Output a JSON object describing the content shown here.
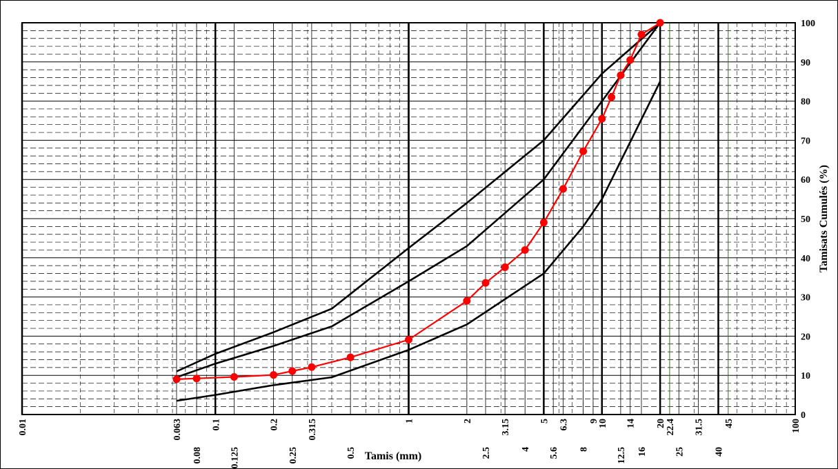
{
  "chart_data": {
    "type": "line",
    "title": "",
    "xlabel": "Tamis (mm)",
    "ylabel": "Tamisats Cumulés (%)",
    "x_scale": "log",
    "xlim": [
      0.01,
      100
    ],
    "ylim": [
      0,
      100
    ],
    "grid": true,
    "x_tick_labels": [
      {
        "value": 0.01,
        "label": "0.01"
      },
      {
        "value": 0.063,
        "label": "0.063"
      },
      {
        "value": 0.08,
        "label": "0.08"
      },
      {
        "value": 0.1,
        "label": "0.1"
      },
      {
        "value": 0.125,
        "label": "0.125"
      },
      {
        "value": 0.2,
        "label": "0.2"
      },
      {
        "value": 0.25,
        "label": "0.25"
      },
      {
        "value": 0.315,
        "label": "0.315"
      },
      {
        "value": 0.5,
        "label": "0.5"
      },
      {
        "value": 1,
        "label": "1"
      },
      {
        "value": 2,
        "label": "2"
      },
      {
        "value": 2.5,
        "label": "2.5"
      },
      {
        "value": 3.15,
        "label": "3.15"
      },
      {
        "value": 4,
        "label": "4"
      },
      {
        "value": 5,
        "label": "5"
      },
      {
        "value": 5.6,
        "label": "5.6"
      },
      {
        "value": 6.3,
        "label": "6.3"
      },
      {
        "value": 8,
        "label": "8"
      },
      {
        "value": 9,
        "label": "9"
      },
      {
        "value": 10,
        "label": "10"
      },
      {
        "value": 12.5,
        "label": "12.5"
      },
      {
        "value": 14,
        "label": "14"
      },
      {
        "value": 16,
        "label": "16"
      },
      {
        "value": 20,
        "label": "20"
      },
      {
        "value": 22.4,
        "label": "22.4"
      },
      {
        "value": 25,
        "label": "25"
      },
      {
        "value": 31.5,
        "label": "31.5"
      },
      {
        "value": 40,
        "label": "40"
      },
      {
        "value": 45,
        "label": "45"
      },
      {
        "value": 100,
        "label": "100"
      }
    ],
    "y_ticks": [
      0,
      10,
      20,
      30,
      40,
      50,
      60,
      70,
      80,
      90,
      100
    ],
    "series": [
      {
        "color": "#000000",
        "markers": false,
        "x": [
          0.063,
          0.1,
          0.2,
          0.4,
          1,
          2,
          5,
          10,
          20
        ],
        "y": [
          11,
          15.5,
          21,
          27,
          42.5,
          54,
          70,
          87,
          100
        ]
      },
      {
        "color": "#000000",
        "markers": false,
        "x": [
          0.063,
          0.1,
          0.2,
          0.4,
          1,
          2,
          5,
          10,
          20
        ],
        "y": [
          9.5,
          13,
          17.5,
          22.5,
          34,
          43,
          60,
          80,
          100
        ]
      },
      {
        "color": "#000000",
        "markers": false,
        "x": [
          0.063,
          0.1,
          0.2,
          0.4,
          1,
          2,
          5,
          8,
          10,
          20
        ],
        "y": [
          3.5,
          5,
          7.5,
          9.5,
          16.5,
          23,
          36,
          48,
          55,
          85
        ]
      },
      {
        "color": "#ff0000",
        "markers": true,
        "x": [
          0.063,
          0.08,
          0.125,
          0.2,
          0.25,
          0.315,
          0.5,
          1,
          2,
          2.5,
          3.15,
          4,
          5,
          6.3,
          8,
          10,
          11.2,
          12.5,
          14,
          16,
          20
        ],
        "y": [
          9,
          9.2,
          9.6,
          10.1,
          11.1,
          12.1,
          14.6,
          19.1,
          29,
          33.6,
          37.6,
          42,
          49,
          57.6,
          67.2,
          75.5,
          81,
          86.6,
          90.5,
          97,
          100
        ]
      }
    ]
  }
}
